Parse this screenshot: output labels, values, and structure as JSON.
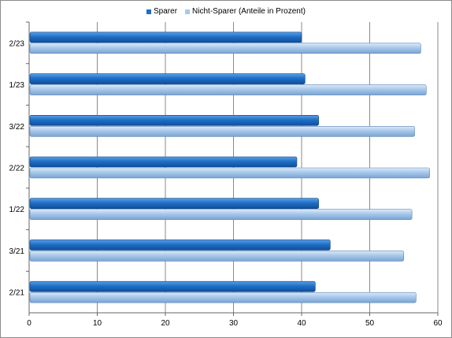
{
  "chart_data": {
    "type": "bar",
    "orientation": "horizontal",
    "categories": [
      "2/23",
      "1/23",
      "3/22",
      "2/22",
      "1/22",
      "3/21",
      "2/21"
    ],
    "series": [
      {
        "name": "Sparer",
        "color": "#1f6fc6",
        "values": [
          40,
          40.5,
          42.5,
          39.3,
          42.5,
          44.2,
          42
        ]
      },
      {
        "name": "Nicht-Sparer (Anteile in Prozent)",
        "color": "#a7c8ea",
        "values": [
          57.5,
          58.3,
          56.6,
          58.8,
          56.2,
          55,
          56.8
        ]
      }
    ],
    "xlim": [
      0,
      60
    ],
    "xticks": [
      "0",
      "10",
      "20",
      "30",
      "40",
      "50",
      "60"
    ],
    "grid": "vertical",
    "legend_position": "top-center"
  }
}
